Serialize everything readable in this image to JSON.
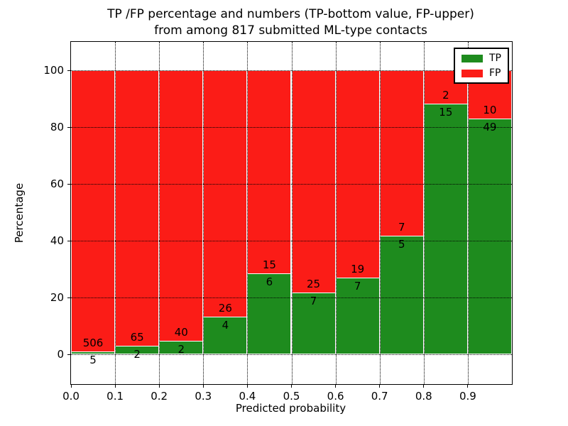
{
  "figure": {
    "title_line1": "TP /FP percentage and numbers (TP-bottom value, FP-upper)",
    "title_line2": "from among 817 submitted ML-type contacts",
    "xlabel": "Predicted probability",
    "ylabel": "Percentage"
  },
  "chart_data": {
    "type": "bar",
    "stacked": true,
    "title": "TP /FP percentage and numbers (TP-bottom value, FP-upper)\nfrom among 817 submitted ML-type contacts",
    "xlabel": "Predicted probability",
    "ylabel": "Percentage",
    "total_contacts": 817,
    "grid": true,
    "legend_position": "upper right",
    "xlim": [
      0.0,
      1.0
    ],
    "ylim": [
      -10.5,
      110
    ],
    "categories": [
      "0.0-0.1",
      "0.1-0.2",
      "0.2-0.3",
      "0.3-0.4",
      "0.4-0.5",
      "0.5-0.6",
      "0.6-0.7",
      "0.7-0.8",
      "0.8-0.9",
      "0.9-1.0"
    ],
    "series": [
      {
        "name": "TP",
        "color": "#1e8b1e",
        "counts": [
          5,
          2,
          2,
          4,
          6,
          7,
          7,
          5,
          15,
          49
        ],
        "pct": [
          0.98,
          2.99,
          4.76,
          13.33,
          28.57,
          21.88,
          26.92,
          41.67,
          88.24,
          83.05
        ]
      },
      {
        "name": "FP",
        "color": "#fb1c17",
        "counts": [
          506,
          65,
          40,
          26,
          15,
          25,
          19,
          7,
          2,
          10
        ],
        "pct": [
          99.02,
          97.01,
          95.24,
          86.67,
          71.43,
          78.13,
          73.08,
          58.33,
          11.76,
          16.95
        ]
      }
    ],
    "xticks": [
      {
        "v": 0.0,
        "label": "0.0"
      },
      {
        "v": 0.1,
        "label": "0.1"
      },
      {
        "v": 0.2,
        "label": "0.2"
      },
      {
        "v": 0.3,
        "label": "0.3"
      },
      {
        "v": 0.4,
        "label": "0.4"
      },
      {
        "v": 0.5,
        "label": "0.5"
      },
      {
        "v": 0.6,
        "label": "0.6"
      },
      {
        "v": 0.7,
        "label": "0.7"
      },
      {
        "v": 0.8,
        "label": "0.8"
      },
      {
        "v": 0.9,
        "label": "0.9"
      }
    ],
    "yticks": [
      {
        "v": 0,
        "label": "0"
      },
      {
        "v": 20,
        "label": "20"
      },
      {
        "v": 40,
        "label": "40"
      },
      {
        "v": 60,
        "label": "60"
      },
      {
        "v": 80,
        "label": "80"
      },
      {
        "v": 100,
        "label": "100"
      }
    ]
  }
}
